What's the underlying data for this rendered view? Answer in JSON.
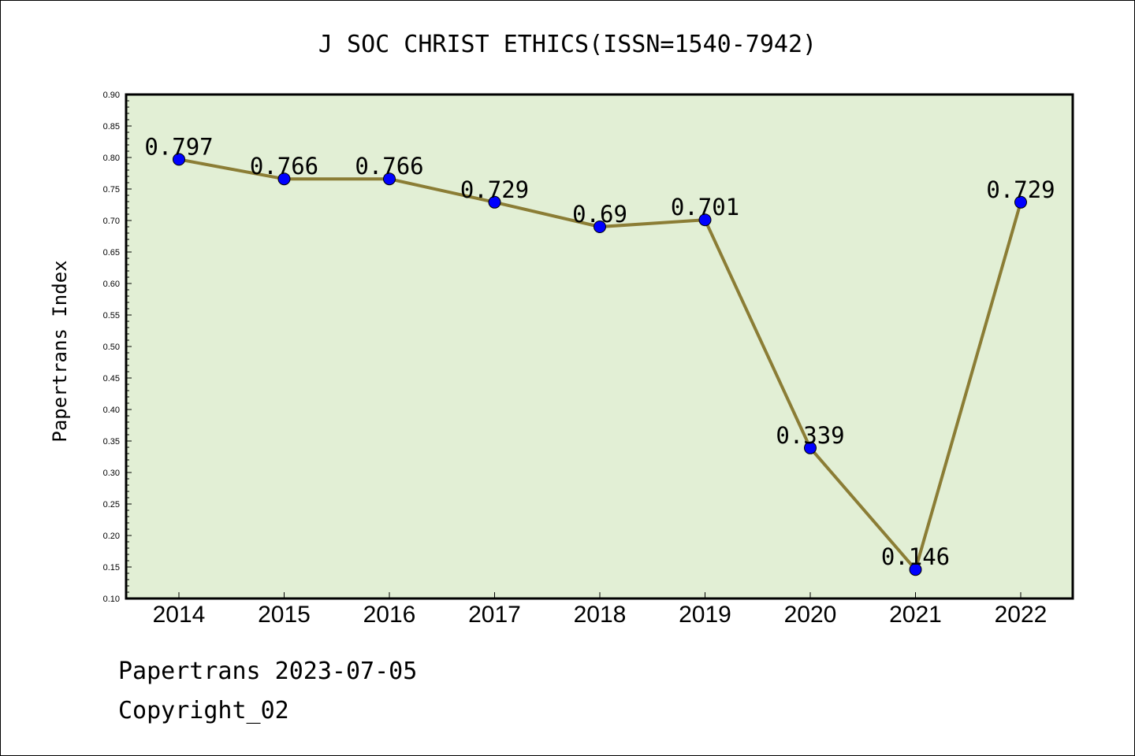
{
  "footer": {
    "line1": "Papertrans 2023-07-05",
    "line2": "Copyright_02"
  },
  "chart_data": {
    "type": "line",
    "title": "J SOC CHRIST ETHICS(ISSN=1540-7942)",
    "xlabel": "",
    "ylabel": "Papertrans Index",
    "x": [
      "2014",
      "2015",
      "2016",
      "2017",
      "2018",
      "2019",
      "2020",
      "2021",
      "2022"
    ],
    "series": [
      {
        "values": [
          0.797,
          0.766,
          0.766,
          0.729,
          0.69,
          0.701,
          0.339,
          0.146,
          0.729
        ],
        "labels": [
          "0.797",
          "0.766",
          "0.766",
          "0.729",
          "0.69",
          "0.701",
          "0.339",
          "0.146",
          "0.729"
        ]
      }
    ],
    "ylim": [
      0.1,
      0.9
    ],
    "yticks": [
      "0.10",
      "0.15",
      "0.20",
      "0.25",
      "0.30",
      "0.35",
      "0.40",
      "0.45",
      "0.50",
      "0.55",
      "0.60",
      "0.65",
      "0.70",
      "0.75",
      "0.80",
      "0.85",
      "0.90"
    ],
    "colors": {
      "plot_background": "#e2efd5",
      "line": "#8b7d35",
      "marker": "#0000ff",
      "frame": "#000000"
    },
    "grid": false,
    "legend": "none"
  }
}
